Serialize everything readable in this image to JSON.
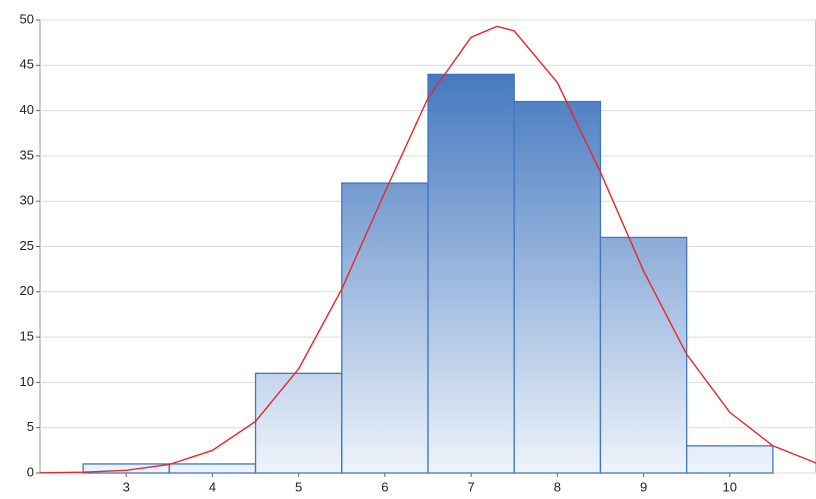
{
  "chart_data": {
    "type": "histogram",
    "bins": [
      2.5,
      3.5,
      4.5,
      5.5,
      6.5,
      7.5,
      8.5,
      9.5,
      10.5
    ],
    "values": [
      1,
      1,
      11,
      32,
      44,
      41,
      26,
      3
    ],
    "color": "#3f78c0",
    "xlim": [
      2,
      11
    ],
    "xticks": [
      3,
      4,
      5,
      6,
      7,
      8,
      9,
      10
    ],
    "ylim": [
      0,
      50
    ],
    "yticks": [
      0,
      5,
      10,
      15,
      20,
      25,
      30,
      35,
      40,
      45,
      50
    ],
    "grid": true,
    "curve": {
      "color": "#e8262c",
      "x": [
        2,
        2.5,
        3,
        3.5,
        4,
        4.5,
        5,
        5.5,
        6,
        6.5,
        7,
        7.3,
        7.5,
        8,
        8.5,
        9,
        9.5,
        10,
        10.5,
        11
      ],
      "y": [
        0.02,
        0.09,
        0.3,
        0.94,
        2.5,
        5.7,
        11.5,
        20.3,
        31.0,
        41.4,
        48.1,
        49.3,
        48.8,
        43.1,
        33.2,
        22.3,
        13.1,
        6.7,
        3.0,
        1.1
      ]
    }
  }
}
